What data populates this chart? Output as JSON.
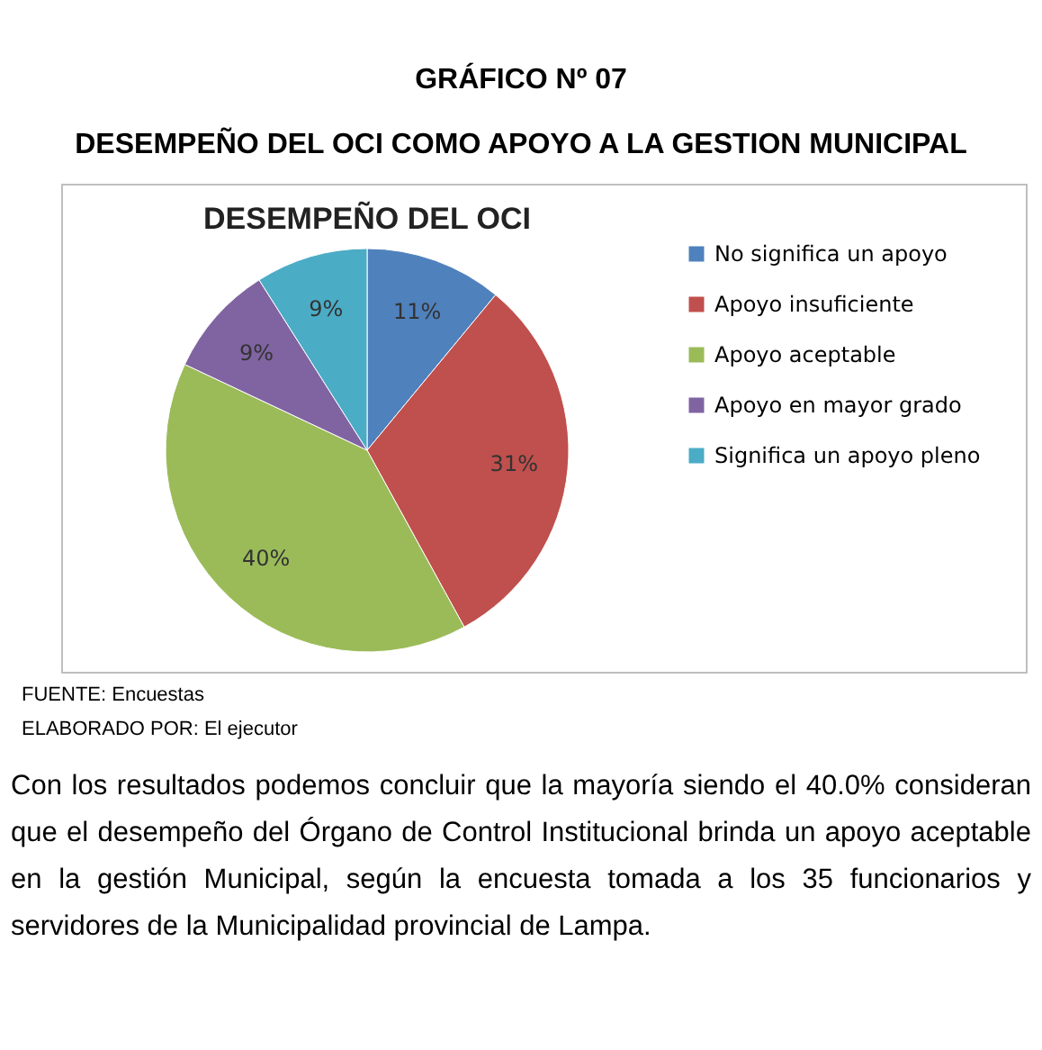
{
  "chart_data": {
    "type": "pie",
    "title": "DESEMPEÑO DEL OCI",
    "categories": [
      "No significa un apoyo",
      "Apoyo insuficiente",
      "Apoyo aceptable",
      "Apoyo en mayor grado",
      "Significa un apoyo pleno"
    ],
    "values": [
      11,
      31,
      40,
      9,
      9
    ],
    "colors": [
      "#4f81bd",
      "#c0504d",
      "#9bbb59",
      "#8064a2",
      "#4bacc6"
    ],
    "value_labels": [
      "11%",
      "31%",
      "40%",
      "9%",
      "9%"
    ],
    "legend": "right",
    "annotations": [
      "GRÁFICO Nº 07",
      "DESEMPEÑO DEL OCI COMO APOYO A LA GESTION MUNICIPAL",
      "FUENTE: Encuestas",
      "ELABORADO POR: El ejecutor",
      "Con los resultados podemos concluir que la mayoría siendo el 40.0% consideran que el desempeño del Órgano de Control Institucional brinda un apoyo aceptable en la gestión Municipal, según la encuesta tomada a los 35 funcionarios y servidores de la Municipalidad provincial de Lampa."
    ]
  }
}
